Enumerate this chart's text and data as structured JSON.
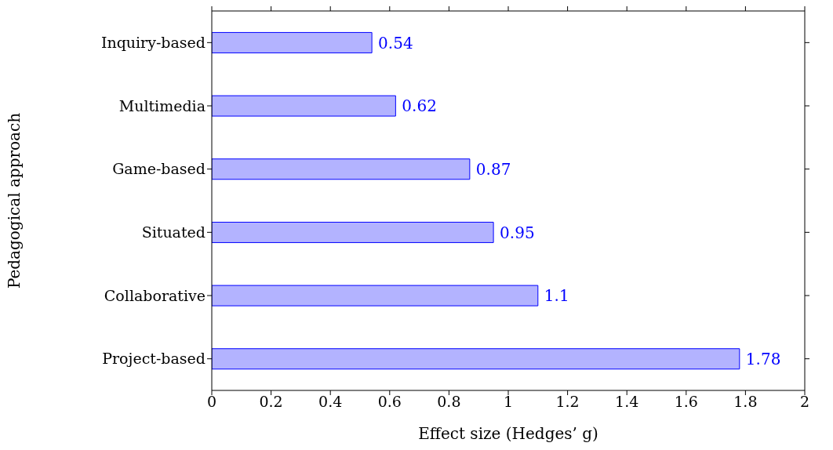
{
  "chart_data": {
    "type": "bar",
    "orientation": "horizontal",
    "xlabel": "Effect size (Hedges’ g)",
    "ylabel": "Pedagogical approach",
    "categories": [
      "Inquiry-based",
      "Multimedia",
      "Game-based",
      "Situated",
      "Collaborative",
      "Project-based"
    ],
    "values": [
      0.54,
      0.62,
      0.87,
      0.95,
      1.1,
      1.78
    ],
    "color": "#b3b3ff",
    "xlim": [
      0,
      2
    ],
    "xticks": [
      0,
      0.2,
      0.4,
      0.6,
      0.8,
      1,
      1.2,
      1.4,
      1.6,
      1.8,
      2
    ],
    "data_labels": true,
    "grid": false,
    "legend": false
  }
}
